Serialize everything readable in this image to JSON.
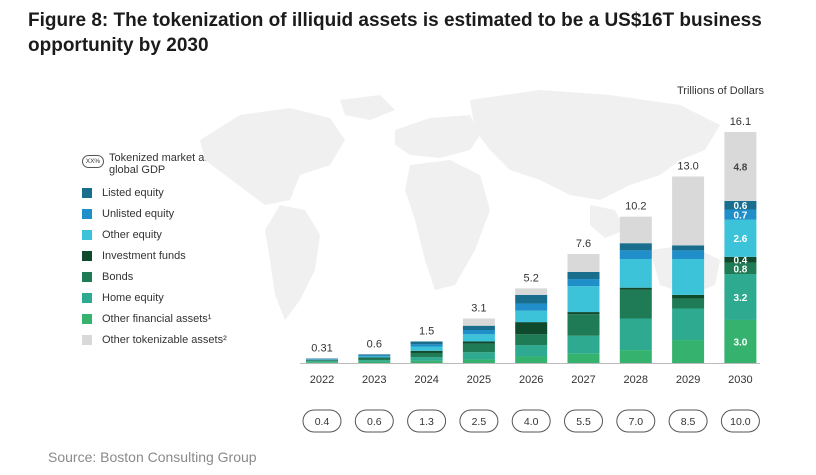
{
  "title": "Figure 8: The tokenization of illiquid assets is estimated to be a US$16T business opportunity by 2030",
  "unit_label": "Trillions of Dollars",
  "source": "Source: Boston Consulting Group",
  "legend": {
    "pct_badge": "XX%",
    "pct_label": "Tokenized market as a % of global GDP"
  },
  "chart_data": {
    "type": "bar",
    "stacked": true,
    "title": "Figure 8: The tokenization of illiquid assets is estimated to be a US$16T business opportunity by 2030",
    "ylabel": "Trillions of Dollars",
    "categories": [
      "2022",
      "2023",
      "2024",
      "2025",
      "2026",
      "2027",
      "2028",
      "2029",
      "2030"
    ],
    "totals": [
      "0.31",
      "0.6",
      "1.5",
      "3.1",
      "5.2",
      "7.6",
      "10.2",
      "13.0",
      "16.1"
    ],
    "gdp_pct": [
      "0.4",
      "0.6",
      "1.3",
      "2.5",
      "4.0",
      "5.5",
      "7.0",
      "8.5",
      "10.0"
    ],
    "series": [
      {
        "name": "Other financial assets¹",
        "color": "#35b36e",
        "values": [
          0.06,
          0.1,
          0.15,
          0.25,
          0.45,
          0.65,
          0.9,
          1.6,
          3.0
        ]
      },
      {
        "name": "Home equity",
        "color": "#2eaa90",
        "values": [
          0.07,
          0.1,
          0.25,
          0.5,
          0.8,
          1.25,
          2.2,
          2.2,
          3.2
        ]
      },
      {
        "name": "Bonds",
        "color": "#1f7a56",
        "values": [
          0.05,
          0.12,
          0.3,
          0.6,
          0.75,
          1.5,
          2.0,
          0.7,
          0.8
        ]
      },
      {
        "name": "Investment funds",
        "color": "#0f4a2c",
        "values": [
          0.02,
          0.06,
          0.15,
          0.15,
          0.85,
          0.15,
          0.15,
          0.25,
          0.4
        ]
      },
      {
        "name": "Other equity",
        "color": "#3dc3d9",
        "values": [
          0.03,
          0.08,
          0.3,
          0.5,
          0.8,
          1.8,
          2.0,
          2.5,
          2.6
        ]
      },
      {
        "name": "Unlisted equity",
        "color": "#1f8ec9",
        "values": [
          0.03,
          0.07,
          0.15,
          0.3,
          0.5,
          0.5,
          0.6,
          0.6,
          0.7
        ]
      },
      {
        "name": "Listed equity",
        "color": "#196e8e",
        "values": [
          0.05,
          0.07,
          0.2,
          0.3,
          0.6,
          0.5,
          0.5,
          0.35,
          0.6
        ]
      },
      {
        "name": "Other tokenizable assets²",
        "color": "#d9d9d9",
        "values": [
          0.0,
          0.0,
          0.0,
          0.5,
          0.45,
          1.25,
          1.85,
          4.8,
          4.8
        ]
      }
    ],
    "bar_labels_2030": [
      "3.0",
      "3.2",
      "0.8",
      "0.4",
      "2.6",
      "0.7",
      "0.6",
      "4.8"
    ],
    "ylim": [
      0,
      16.1
    ]
  }
}
